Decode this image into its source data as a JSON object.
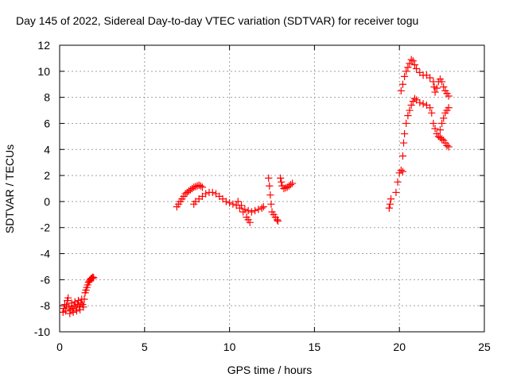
{
  "chart_data": {
    "type": "scatter",
    "title": "Day 145 of 2022, Sidereal Day-to-day VTEC variation (SDTVAR) for receiver togu",
    "xlabel": "GPS time / hours",
    "ylabel": "SDTVAR / TECUs",
    "xlim": [
      0,
      25
    ],
    "ylim": [
      -10,
      12
    ],
    "xticks": [
      0,
      5,
      10,
      15,
      20,
      25
    ],
    "yticks": [
      -10,
      -8,
      -6,
      -4,
      -2,
      0,
      2,
      4,
      6,
      8,
      10,
      12
    ],
    "grid": true,
    "marker": "+",
    "series": [
      {
        "name": "SDTVAR",
        "color": "#ff0000",
        "points": [
          [
            0.2,
            -8.5
          ],
          [
            0.25,
            -8.2
          ],
          [
            0.3,
            -7.9
          ],
          [
            0.35,
            -8.4
          ],
          [
            0.4,
            -8.0
          ],
          [
            0.45,
            -7.6
          ],
          [
            0.5,
            -7.4
          ],
          [
            0.55,
            -8.1
          ],
          [
            0.6,
            -8.6
          ],
          [
            0.65,
            -8.3
          ],
          [
            0.7,
            -7.8
          ],
          [
            0.75,
            -8.2
          ],
          [
            0.8,
            -8.5
          ],
          [
            0.85,
            -8.0
          ],
          [
            0.9,
            -7.7
          ],
          [
            0.95,
            -8.1
          ],
          [
            1.0,
            -8.4
          ],
          [
            1.05,
            -7.9
          ],
          [
            1.1,
            -7.6
          ],
          [
            1.15,
            -8.0
          ],
          [
            1.2,
            -8.3
          ],
          [
            1.25,
            -7.8
          ],
          [
            1.3,
            -7.5
          ],
          [
            1.35,
            -7.9
          ],
          [
            1.4,
            -8.1
          ],
          [
            1.45,
            -7.5
          ],
          [
            1.5,
            -7.0
          ],
          [
            1.55,
            -6.8
          ],
          [
            1.6,
            -6.6
          ],
          [
            1.65,
            -6.4
          ],
          [
            1.7,
            -6.2
          ],
          [
            1.75,
            -6.1
          ],
          [
            1.8,
            -6.0
          ],
          [
            1.85,
            -5.9
          ],
          [
            1.9,
            -5.9
          ],
          [
            1.95,
            -5.8
          ],
          [
            2.0,
            -5.85
          ],
          [
            6.9,
            -0.4
          ],
          [
            7.0,
            -0.2
          ],
          [
            7.1,
            0.0
          ],
          [
            7.2,
            0.2
          ],
          [
            7.3,
            0.4
          ],
          [
            7.4,
            0.6
          ],
          [
            7.5,
            0.7
          ],
          [
            7.6,
            0.8
          ],
          [
            7.7,
            0.9
          ],
          [
            7.8,
            1.0
          ],
          [
            7.9,
            1.1
          ],
          [
            8.0,
            1.15
          ],
          [
            8.1,
            1.2
          ],
          [
            8.2,
            1.25
          ],
          [
            8.3,
            1.2
          ],
          [
            8.4,
            1.1
          ],
          [
            7.9,
            -0.2
          ],
          [
            8.0,
            0.0
          ],
          [
            8.2,
            0.2
          ],
          [
            8.4,
            0.4
          ],
          [
            8.6,
            0.6
          ],
          [
            8.8,
            0.7
          ],
          [
            9.0,
            0.7
          ],
          [
            9.2,
            0.6
          ],
          [
            9.4,
            0.4
          ],
          [
            9.6,
            0.2
          ],
          [
            9.8,
            0.0
          ],
          [
            10.0,
            -0.1
          ],
          [
            10.2,
            -0.2
          ],
          [
            10.4,
            -0.3
          ],
          [
            10.6,
            -0.5
          ],
          [
            10.8,
            -0.8
          ],
          [
            11.0,
            -1.2
          ],
          [
            11.1,
            -1.4
          ],
          [
            11.2,
            -1.6
          ],
          [
            10.5,
            0.0
          ],
          [
            10.7,
            -0.3
          ],
          [
            10.9,
            -0.6
          ],
          [
            11.1,
            -0.7
          ],
          [
            11.3,
            -0.8
          ],
          [
            11.5,
            -0.7
          ],
          [
            11.7,
            -0.6
          ],
          [
            11.9,
            -0.5
          ],
          [
            12.0,
            -0.4
          ],
          [
            12.3,
            1.8
          ],
          [
            12.35,
            1.2
          ],
          [
            12.4,
            0.5
          ],
          [
            12.45,
            -0.2
          ],
          [
            12.5,
            -0.8
          ],
          [
            12.6,
            -1.0
          ],
          [
            12.7,
            -1.2
          ],
          [
            12.8,
            -1.4
          ],
          [
            12.85,
            -1.5
          ],
          [
            13.0,
            1.8
          ],
          [
            13.05,
            1.5
          ],
          [
            13.1,
            1.2
          ],
          [
            13.2,
            1.0
          ],
          [
            13.3,
            1.05
          ],
          [
            13.4,
            1.1
          ],
          [
            13.5,
            1.2
          ],
          [
            13.6,
            1.3
          ],
          [
            13.7,
            1.4
          ],
          [
            19.4,
            -0.5
          ],
          [
            19.45,
            -0.2
          ],
          [
            19.5,
            0.2
          ],
          [
            19.8,
            0.7
          ],
          [
            19.9,
            1.5
          ],
          [
            20.0,
            2.2
          ],
          [
            20.1,
            2.4
          ],
          [
            20.2,
            2.3
          ],
          [
            20.2,
            3.5
          ],
          [
            20.25,
            4.5
          ],
          [
            20.3,
            5.2
          ],
          [
            20.4,
            6.0
          ],
          [
            20.5,
            6.6
          ],
          [
            20.6,
            7.0
          ],
          [
            20.7,
            7.4
          ],
          [
            20.8,
            7.7
          ],
          [
            20.9,
            7.9
          ],
          [
            21.0,
            7.8
          ],
          [
            21.2,
            7.6
          ],
          [
            21.4,
            7.5
          ],
          [
            21.6,
            7.4
          ],
          [
            21.8,
            7.2
          ],
          [
            21.9,
            6.8
          ],
          [
            22.0,
            6.0
          ],
          [
            22.1,
            5.6
          ],
          [
            22.2,
            5.2
          ],
          [
            22.3,
            5.0
          ],
          [
            22.4,
            4.9
          ],
          [
            22.5,
            4.8
          ],
          [
            22.6,
            4.7
          ],
          [
            22.7,
            4.5
          ],
          [
            22.8,
            4.3
          ],
          [
            22.9,
            4.2
          ],
          [
            20.1,
            8.5
          ],
          [
            20.2,
            9.0
          ],
          [
            20.3,
            9.6
          ],
          [
            20.4,
            10.0
          ],
          [
            20.5,
            10.3
          ],
          [
            20.6,
            10.6
          ],
          [
            20.7,
            10.9
          ],
          [
            20.8,
            10.8
          ],
          [
            20.9,
            10.5
          ],
          [
            21.0,
            10.2
          ],
          [
            21.2,
            9.9
          ],
          [
            21.4,
            9.7
          ],
          [
            21.6,
            9.7
          ],
          [
            21.8,
            9.5
          ],
          [
            22.0,
            9.2
          ],
          [
            22.05,
            8.8
          ],
          [
            22.1,
            8.4
          ],
          [
            22.2,
            8.7
          ],
          [
            22.3,
            9.2
          ],
          [
            22.4,
            9.4
          ],
          [
            22.5,
            9.2
          ],
          [
            22.6,
            8.8
          ],
          [
            22.7,
            8.5
          ],
          [
            22.8,
            8.3
          ],
          [
            22.9,
            8.1
          ],
          [
            22.4,
            5.5
          ],
          [
            22.5,
            6.0
          ],
          [
            22.6,
            6.4
          ],
          [
            22.7,
            6.8
          ],
          [
            22.8,
            7.0
          ],
          [
            22.9,
            7.2
          ]
        ]
      }
    ]
  }
}
